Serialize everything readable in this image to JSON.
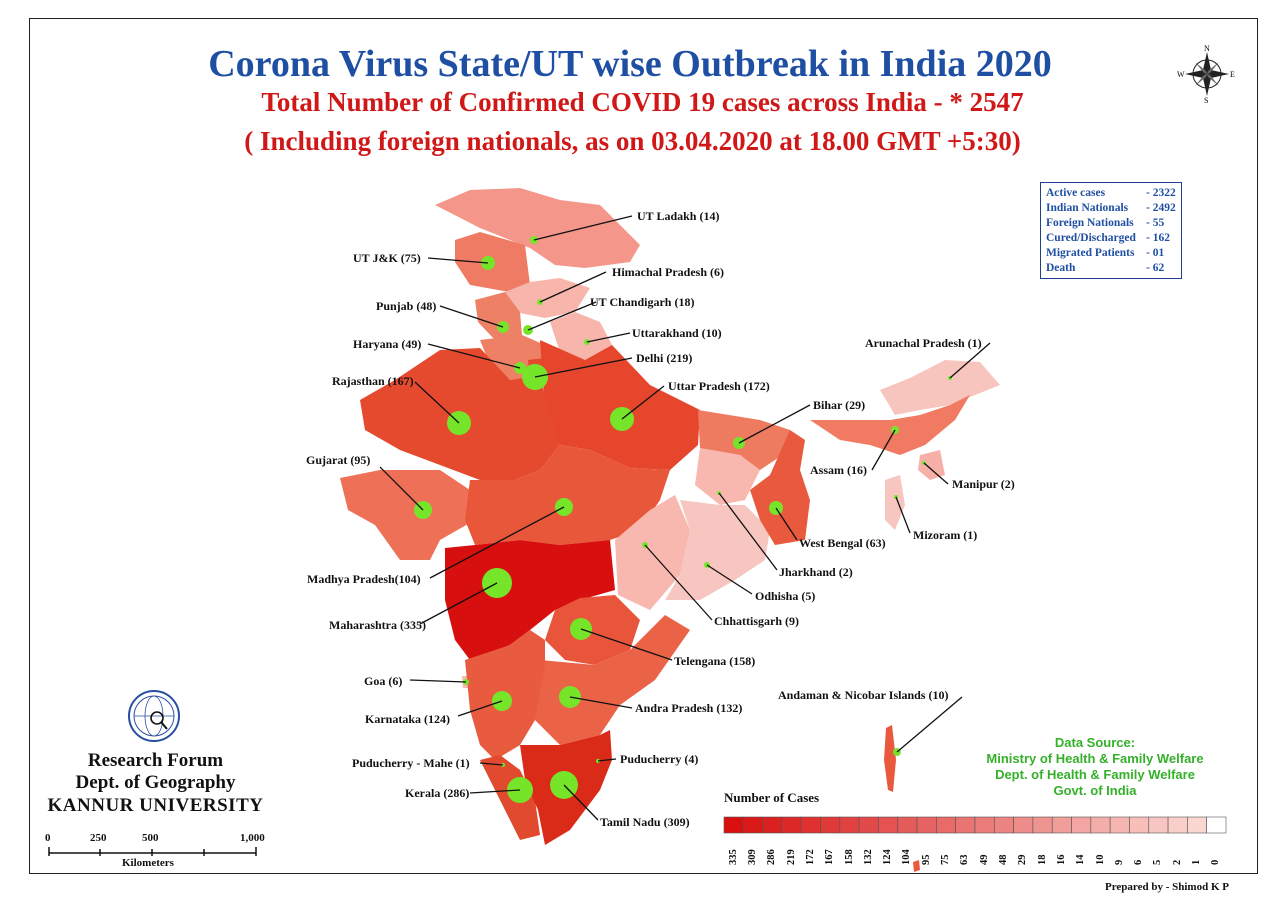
{
  "title": "Corona Virus State/UT wise Outbreak in India 2020",
  "subtitle": "Total Number of Confirmed COVID 19 cases across India - * 2547",
  "note": "( Including foreign nationals, as on 03.04.2020 at 18.00 GMT +5:30)",
  "stats": [
    {
      "label": "Active cases",
      "value": "- 2322"
    },
    {
      "label": "Indian Nationals",
      "value": "- 2492"
    },
    {
      "label": "Foreign Nationals",
      "value": "-  55"
    },
    {
      "label": "Cured/Discharged",
      "value": "- 162"
    },
    {
      "label": "Migrated Patients",
      "value": "- 01"
    },
    {
      "label": "Death",
      "value": "- 62"
    }
  ],
  "states": [
    {
      "label": "UT Ladakh (14)"
    },
    {
      "label": "UT J&K (75)"
    },
    {
      "label": "Himachal Pradesh (6)"
    },
    {
      "label": "UT Chandigarh (18)"
    },
    {
      "label": "Punjab (48)"
    },
    {
      "label": "Uttarakhand (10)"
    },
    {
      "label": "Haryana (49)"
    },
    {
      "label": "Delhi (219)"
    },
    {
      "label": "Rajasthan (167)"
    },
    {
      "label": "Uttar Pradesh (172)"
    },
    {
      "label": "Arunachal Pradesh (1)"
    },
    {
      "label": "Bihar (29)"
    },
    {
      "label": "Assam (16)"
    },
    {
      "label": "Manipur (2)"
    },
    {
      "label": "Gujarat (95)"
    },
    {
      "label": "Mizoram (1)"
    },
    {
      "label": "West Bengal (63)"
    },
    {
      "label": "Jharkhand (2)"
    },
    {
      "label": "Madhya Pradesh(104)"
    },
    {
      "label": "Odhisha (5)"
    },
    {
      "label": "Maharashtra (335)"
    },
    {
      "label": "Chhattisgarh (9)"
    },
    {
      "label": "Telengana (158)"
    },
    {
      "label": "Goa (6)"
    },
    {
      "label": "Andra Pradesh (132)"
    },
    {
      "label": "Karnataka (124)"
    },
    {
      "label": "Andaman & Nicobar Islands (10)"
    },
    {
      "label": "Puducherry (4)"
    },
    {
      "label": "Puducherry - Mahe (1)"
    },
    {
      "label": "Kerala (286)"
    },
    {
      "label": "Tamil Nadu (309)"
    }
  ],
  "legend": {
    "title": "Number of Cases",
    "classes": [
      "335",
      "309",
      "286",
      "219",
      "172",
      "167",
      "158",
      "132",
      "124",
      "104",
      "95",
      "75",
      "63",
      "49",
      "48",
      "29",
      "18",
      "16",
      "14",
      "10",
      "9",
      "6",
      "5",
      "2",
      "1",
      "0"
    ]
  },
  "data_source": {
    "heading": "Data Source:",
    "lines": [
      "Ministry of Health & Family Welfare",
      "Dept. of Health & Family Welfare",
      "Govt. of India"
    ]
  },
  "org": {
    "line1": "Research Forum",
    "line2": "Dept. of Geography",
    "line3": "KANNUR UNIVERSITY",
    "logo_text": "Geographical"
  },
  "scale": {
    "ticks": [
      "0",
      "250",
      "500",
      "1,000"
    ],
    "unit": "Kilometers"
  },
  "compass": {
    "n": "N",
    "s": "S",
    "e": "E",
    "w": "W"
  },
  "prepared_by": "Prepared by - Shimod K P",
  "colors": {
    "title": "#1f4fa3",
    "subtitle": "#d01818",
    "marker": "#76e52a",
    "source_text": "#35b02a"
  }
}
